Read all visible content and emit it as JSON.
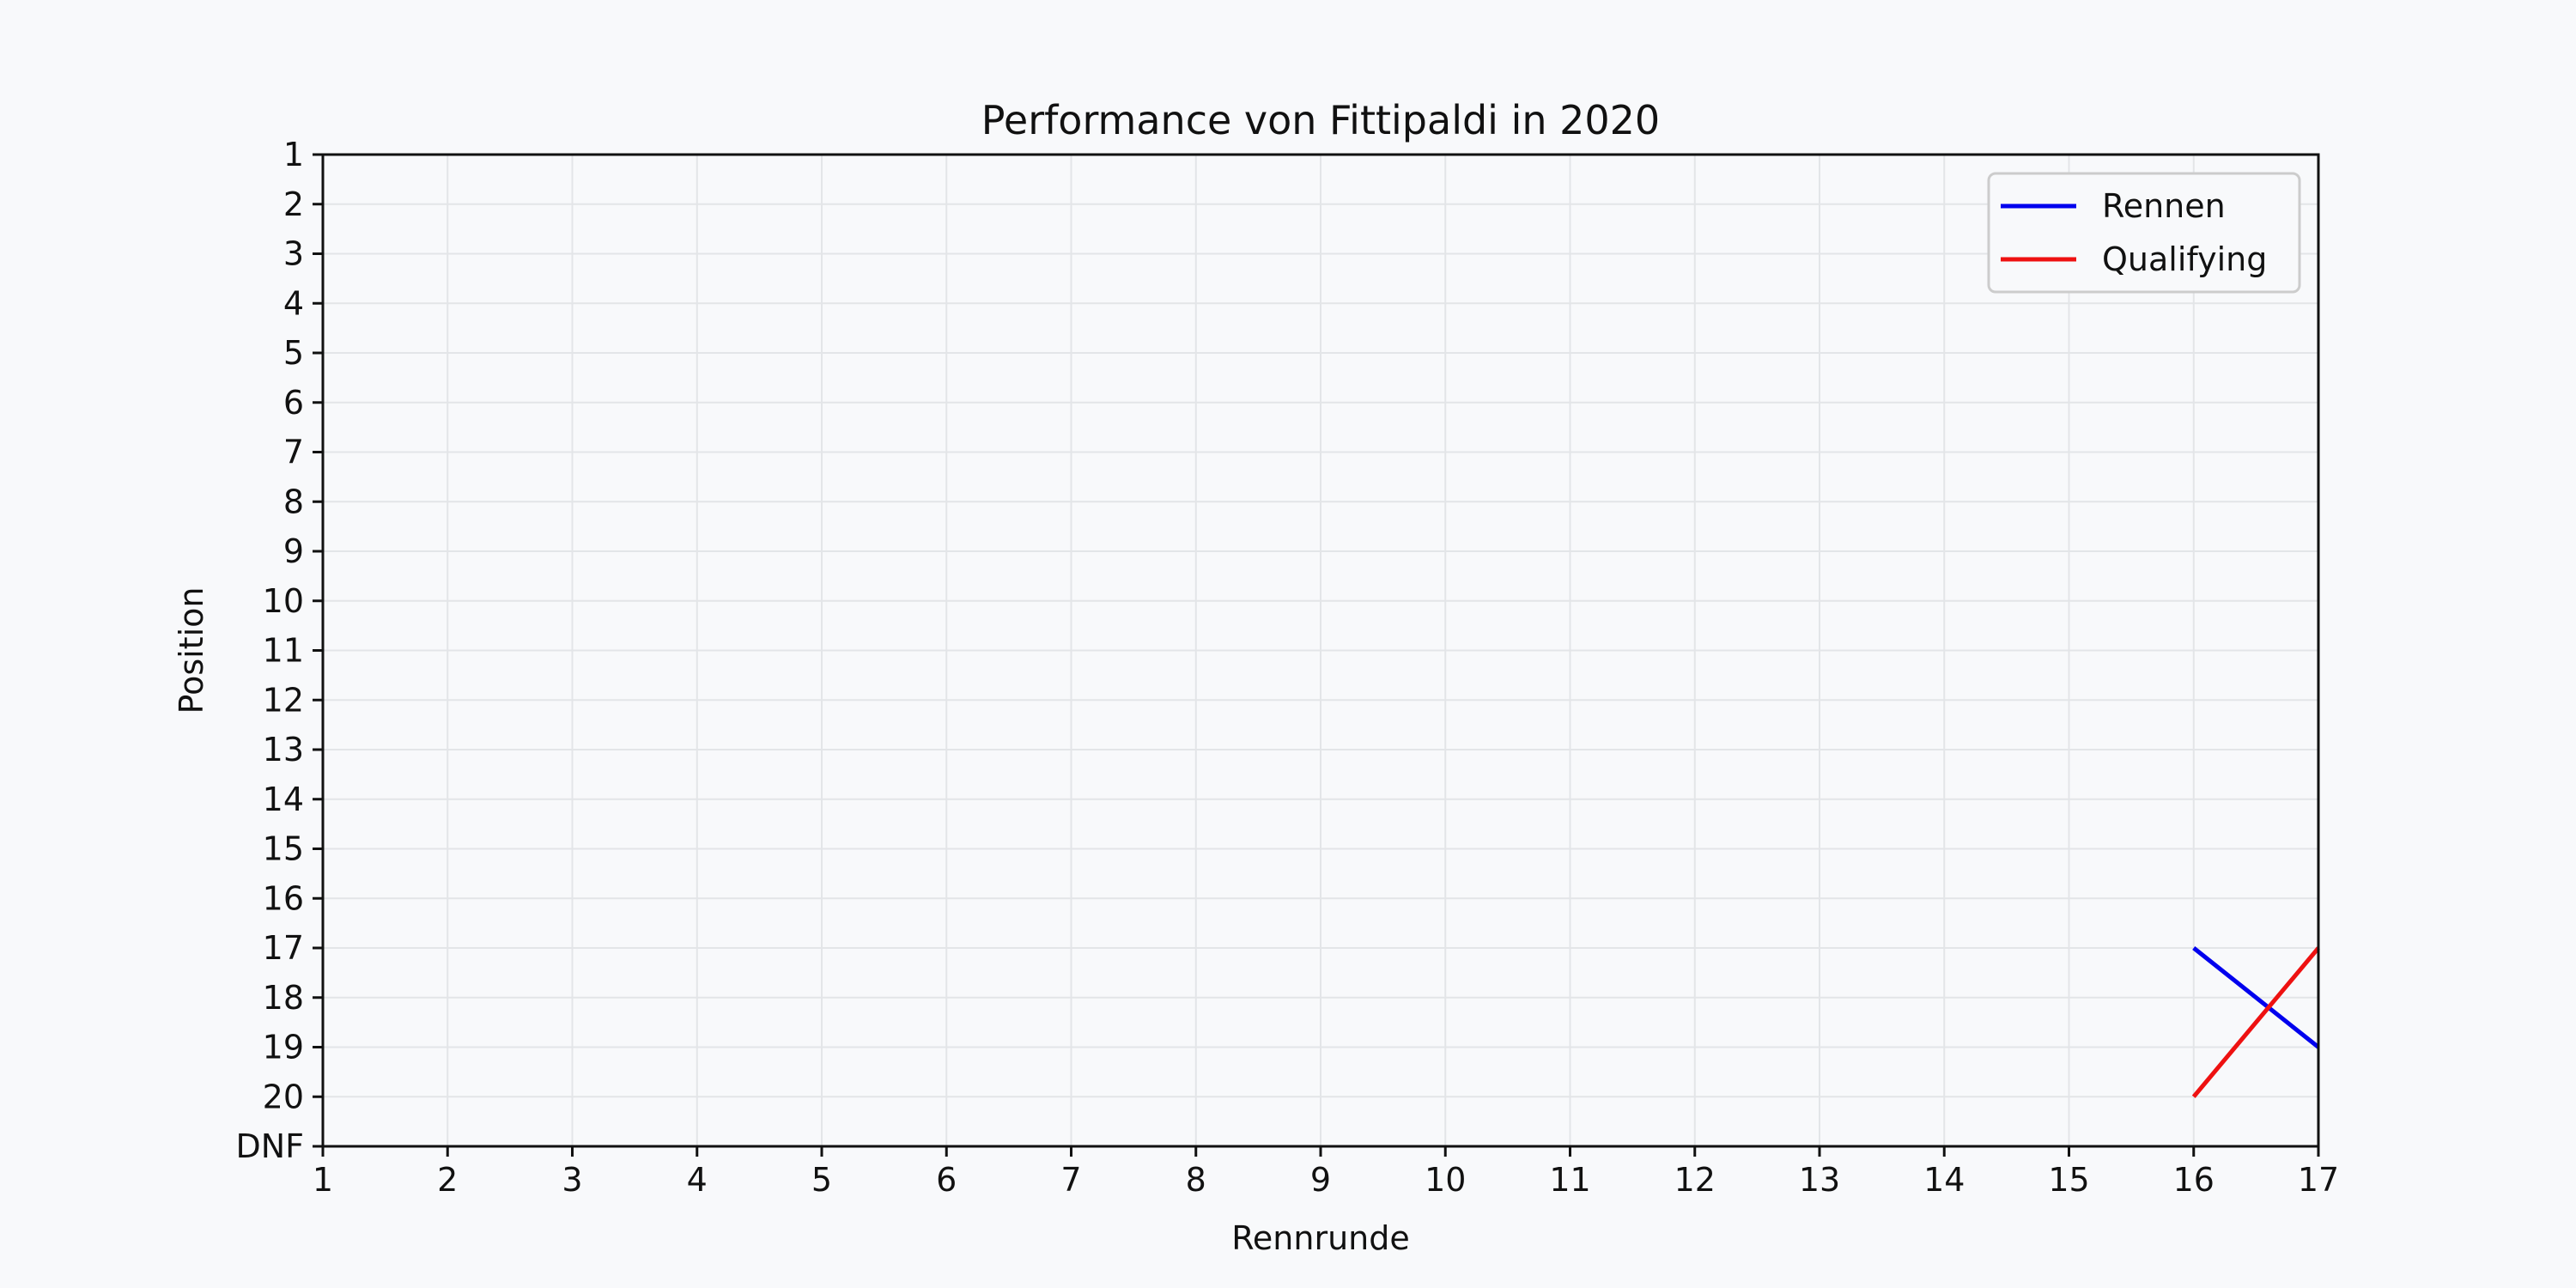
{
  "chart_data": {
    "type": "line",
    "title": "Performance von Fittipaldi in 2020",
    "xlabel": "Rennrunde",
    "ylabel": "Position",
    "x_ticks": [
      "1",
      "2",
      "3",
      "4",
      "5",
      "6",
      "7",
      "8",
      "9",
      "10",
      "11",
      "12",
      "13",
      "14",
      "15",
      "16",
      "17"
    ],
    "y_ticks": [
      "1",
      "2",
      "3",
      "4",
      "5",
      "6",
      "7",
      "8",
      "9",
      "10",
      "11",
      "12",
      "13",
      "14",
      "15",
      "16",
      "17",
      "18",
      "19",
      "20",
      "DNF"
    ],
    "xlim": [
      1,
      17
    ],
    "ylim": [
      1,
      21
    ],
    "y_inverted": true,
    "grid": true,
    "legend_position": "top-right",
    "series": [
      {
        "name": "Rennen",
        "color": "#0000ee",
        "x": [
          16,
          17
        ],
        "y": [
          17,
          19
        ]
      },
      {
        "name": "Qualifying",
        "color": "#ee1111",
        "x": [
          16,
          17
        ],
        "y": [
          20,
          17
        ]
      }
    ]
  }
}
